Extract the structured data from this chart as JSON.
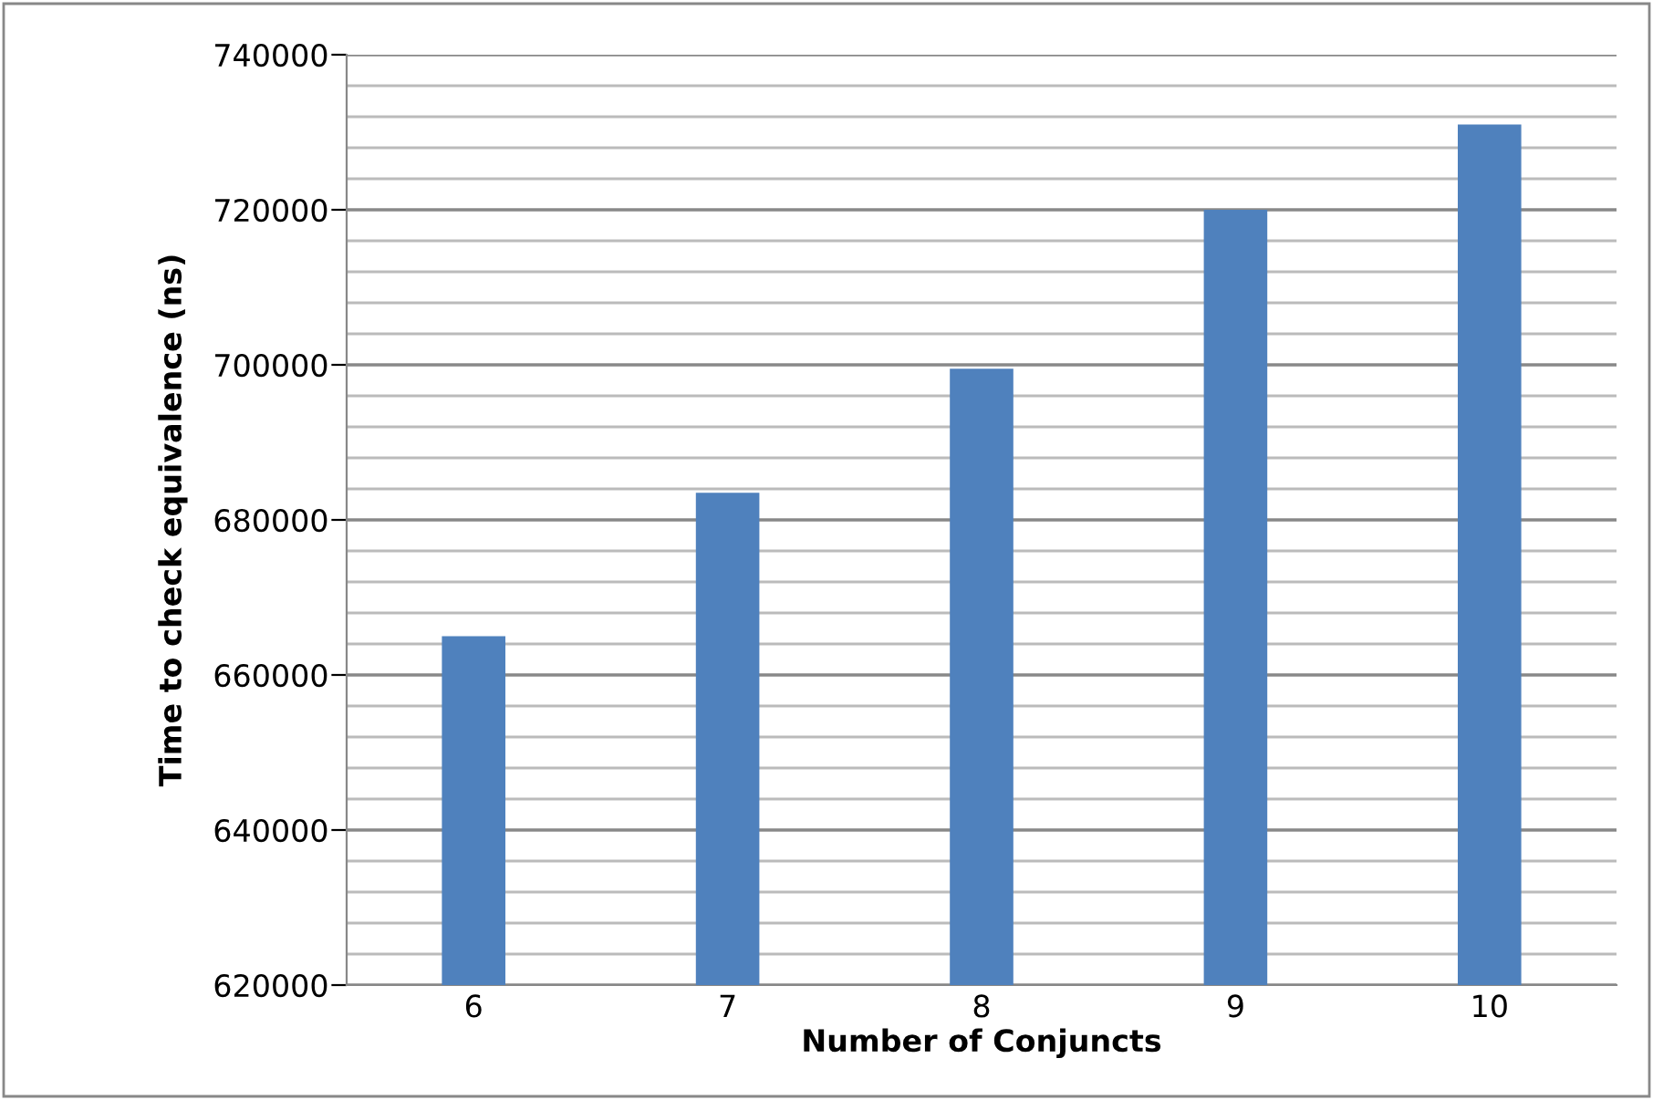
{
  "chart_data": {
    "type": "bar",
    "xlabel": "Number of Conjuncts",
    "ylabel": "Time to check equivalence (ns)",
    "categories": [
      "6",
      "7",
      "8",
      "9",
      "10"
    ],
    "values": [
      665000,
      683500,
      699500,
      720000,
      731000
    ],
    "color": "#4f81bd",
    "ylim": [
      620000,
      740000
    ],
    "yticks": [
      620000,
      {
        "value": 624000,
        "label": null
      },
      {
        "value": 628000,
        "label": null
      },
      {
        "value": 632000,
        "label": null
      },
      {
        "value": 636000,
        "label": null
      },
      640000,
      {
        "value": 644000,
        "label": null
      },
      {
        "value": 648000,
        "label": null
      },
      {
        "value": 652000,
        "label": null
      },
      {
        "value": 656000,
        "label": null
      },
      660000,
      {
        "value": 664000,
        "label": null
      },
      {
        "value": 668000,
        "label": null
      },
      {
        "value": 672000,
        "label": null
      },
      {
        "value": 676000,
        "label": null
      },
      680000,
      {
        "value": 684000,
        "label": null
      },
      {
        "value": 688000,
        "label": null
      },
      {
        "value": 692000,
        "label": null
      },
      {
        "value": 696000,
        "label": null
      },
      700000,
      {
        "value": 704000,
        "label": null
      },
      {
        "value": 708000,
        "label": null
      },
      {
        "value": 712000,
        "label": null
      },
      {
        "value": 716000,
        "label": null
      },
      720000,
      {
        "value": 724000,
        "label": null
      },
      {
        "value": 728000,
        "label": null
      },
      {
        "value": 732000,
        "label": null
      },
      {
        "value": 736000,
        "label": null
      },
      740000
    ],
    "grid": "y"
  }
}
